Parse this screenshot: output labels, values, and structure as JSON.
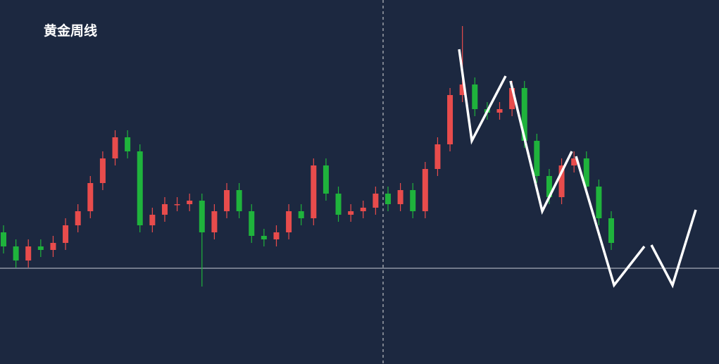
{
  "chart_data": {
    "type": "candlestick",
    "title": "黄金周线",
    "open": [
      187,
      167,
      147,
      167,
      162,
      172,
      197,
      217,
      257,
      292,
      322,
      302,
      197,
      212,
      227,
      227,
      232,
      187,
      217,
      247,
      217,
      182,
      177,
      187,
      217,
      207,
      282,
      242,
      212,
      217,
      222,
      242,
      227,
      247,
      217,
      277,
      312,
      382,
      397,
      362,
      357,
      362,
      392,
      317,
      267,
      237,
      282,
      292,
      252,
      207
    ],
    "high": [
      197,
      177,
      177,
      177,
      182,
      207,
      227,
      267,
      302,
      332,
      332,
      312,
      222,
      237,
      237,
      242,
      242,
      227,
      257,
      257,
      227,
      192,
      197,
      227,
      227,
      292,
      292,
      252,
      227,
      232,
      252,
      252,
      257,
      257,
      287,
      322,
      392,
      480,
      407,
      372,
      372,
      402,
      402,
      327,
      277,
      292,
      302,
      302,
      262,
      217
    ],
    "low": [
      157,
      137,
      137,
      152,
      152,
      162,
      187,
      207,
      247,
      282,
      292,
      187,
      187,
      202,
      217,
      217,
      110,
      177,
      207,
      207,
      172,
      167,
      167,
      177,
      197,
      197,
      232,
      202,
      202,
      207,
      212,
      217,
      217,
      207,
      207,
      267,
      302,
      372,
      352,
      347,
      347,
      352,
      307,
      257,
      227,
      227,
      272,
      242,
      197,
      162
    ],
    "close": [
      167,
      147,
      167,
      162,
      172,
      197,
      217,
      257,
      292,
      322,
      302,
      197,
      212,
      227,
      227,
      232,
      187,
      217,
      247,
      217,
      182,
      177,
      187,
      217,
      207,
      282,
      242,
      212,
      217,
      222,
      242,
      227,
      247,
      217,
      277,
      312,
      382,
      397,
      362,
      357,
      362,
      392,
      317,
      267,
      237,
      282,
      292,
      252,
      207,
      172
    ],
    "up_color": "#e84c4c",
    "down_color": "#1fb33c",
    "ylim": [
      0,
      517
    ],
    "hline": 136
  }
}
